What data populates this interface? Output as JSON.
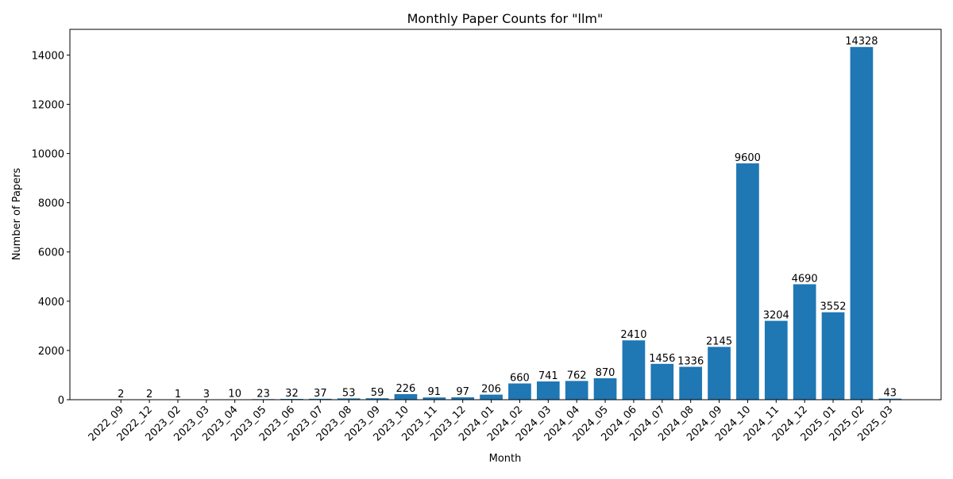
{
  "chart_data": {
    "type": "bar",
    "title": "Monthly Paper Counts for \"llm\"",
    "xlabel": "Month",
    "ylabel": "Number of Papers",
    "categories": [
      "2022_09",
      "2022_12",
      "2023_02",
      "2023_03",
      "2023_04",
      "2023_05",
      "2023_06",
      "2023_07",
      "2023_08",
      "2023_09",
      "2023_10",
      "2023_11",
      "2023_12",
      "2024_01",
      "2024_02",
      "2024_03",
      "2024_04",
      "2024_05",
      "2024_06",
      "2024_07",
      "2024_08",
      "2024_09",
      "2024_10",
      "2024_11",
      "2024_12",
      "2025_01",
      "2025_02",
      "2025_03"
    ],
    "values": [
      2,
      2,
      1,
      3,
      10,
      23,
      32,
      37,
      53,
      59,
      226,
      91,
      97,
      206,
      660,
      741,
      762,
      870,
      2410,
      1456,
      1336,
      2145,
      9600,
      3204,
      4690,
      3552,
      14328,
      43
    ],
    "ylim": [
      0,
      15044
    ],
    "yticks": [
      0,
      2000,
      4000,
      6000,
      8000,
      10000,
      12000,
      14000
    ],
    "grid": false,
    "bar_color": "#1f77b4",
    "data_labels": true
  }
}
